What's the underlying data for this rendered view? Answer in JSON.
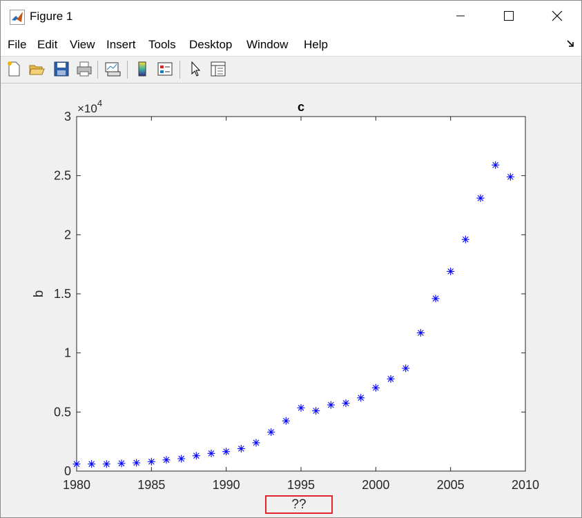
{
  "window": {
    "title": "Figure 1",
    "icon": "matlab-logo-icon",
    "controls": [
      "minimize-icon",
      "maximize-icon",
      "close-icon"
    ]
  },
  "menu": [
    "File",
    "Edit",
    "View",
    "Insert",
    "Tools",
    "Desktop",
    "Window",
    "Help"
  ],
  "toolbar": [
    "new-figure-icon",
    "open-file-icon",
    "save-icon",
    "print-icon",
    "link-plot-icon",
    "insert-colorbar-icon",
    "insert-legend-icon",
    "edit-plot-arrow-icon",
    "property-inspector-icon"
  ],
  "colors": {
    "marker": "#0000ff",
    "axis": "#262626",
    "highlight_box": "#e0242b"
  },
  "chart_data": {
    "type": "scatter",
    "title": "c",
    "xlabel": "??",
    "ylabel": "b",
    "y_exponent_label": "×10",
    "y_exponent_power": "4",
    "xlim": [
      1980,
      2010
    ],
    "ylim": [
      0,
      30000
    ],
    "xticks": [
      "1980",
      "1985",
      "1990",
      "1995",
      "2000",
      "2005",
      "2010"
    ],
    "yticks": [
      "0",
      "0.5",
      "1",
      "1.5",
      "2",
      "2.5",
      "3"
    ],
    "marker": "*",
    "x": [
      1980,
      1981,
      1982,
      1983,
      1984,
      1985,
      1986,
      1987,
      1988,
      1989,
      1990,
      1991,
      1992,
      1993,
      1994,
      1995,
      1996,
      1997,
      1998,
      1999,
      2000,
      2001,
      2002,
      2003,
      2004,
      2005,
      2006,
      2007,
      2008,
      2009
    ],
    "y": [
      600,
      600,
      600,
      650,
      700,
      800,
      950,
      1050,
      1300,
      1500,
      1650,
      1900,
      2400,
      3300,
      4250,
      5350,
      5100,
      5600,
      5750,
      6200,
      7050,
      7800,
      8700,
      11700,
      14600,
      16900,
      19600,
      23100,
      25900,
      24900
    ]
  }
}
